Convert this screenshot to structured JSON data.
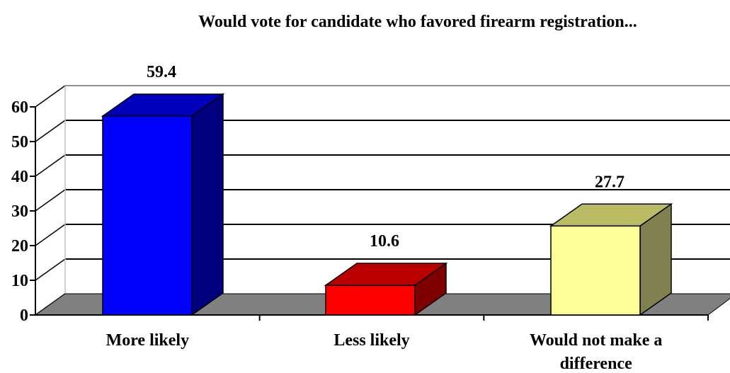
{
  "chart_data": {
    "type": "bar",
    "title": "Would vote for candidate who favored firearm registration...",
    "xlabel": "",
    "ylabel": "",
    "categories": [
      "More likely",
      "Less likely",
      "Would not make a difference"
    ],
    "category_lines": [
      [
        "More likely"
      ],
      [
        "Less likely"
      ],
      [
        "Would not make a",
        "difference"
      ]
    ],
    "values": [
      59.4,
      10.6,
      27.7
    ],
    "value_labels": [
      "59.4",
      "10.6",
      "27.7"
    ],
    "ylim": [
      0,
      60
    ],
    "yticks": [
      0,
      10,
      20,
      30,
      40,
      50,
      60
    ],
    "grid": true,
    "legend": "none",
    "style": "3d-column",
    "colors": {
      "front": [
        "#0000FF",
        "#FF0000",
        "#FFFF99"
      ],
      "top": [
        "#0000BB",
        "#BB0000",
        "#BBBB66"
      ],
      "side": [
        "#000080",
        "#800000",
        "#808050"
      ],
      "floor": "#808080"
    }
  }
}
